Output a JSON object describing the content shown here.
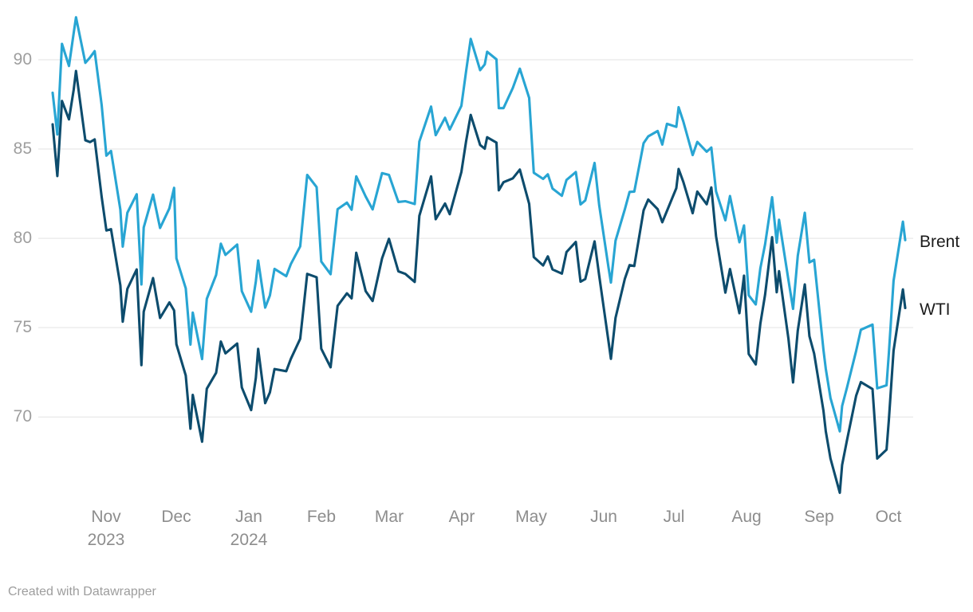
{
  "attribution": "Created with Datawrapper",
  "colors": {
    "background": "#ffffff",
    "grid": "#e3e3e3",
    "axis_text": "#9e9e9e",
    "month_text": "#8d8d8d",
    "series_label_text": "#1c1c1c",
    "brent": "#28a5d3",
    "wti": "#0d4c6d"
  },
  "chart_data": {
    "type": "line",
    "title": "",
    "xlabel": "",
    "ylabel": "",
    "grid": "horizontal",
    "legend_position": "line-end-labels-right",
    "yticks": [
      70,
      75,
      80,
      85,
      90
    ],
    "ylim": [
      65.5,
      92.9
    ],
    "x_range": [
      "2023-10-09",
      "2024-10-08"
    ],
    "month_labels": [
      {
        "text": "Nov",
        "sub": "2023",
        "date": "2023-11-01"
      },
      {
        "text": "Dec",
        "sub": "",
        "date": "2023-12-01"
      },
      {
        "text": "Jan",
        "sub": "2024",
        "date": "2024-01-01"
      },
      {
        "text": "Feb",
        "sub": "",
        "date": "2024-02-01"
      },
      {
        "text": "Mar",
        "sub": "",
        "date": "2024-03-01"
      },
      {
        "text": "Apr",
        "sub": "",
        "date": "2024-04-01"
      },
      {
        "text": "May",
        "sub": "",
        "date": "2024-05-01"
      },
      {
        "text": "Jun",
        "sub": "",
        "date": "2024-06-01"
      },
      {
        "text": "Jul",
        "sub": "",
        "date": "2024-07-01"
      },
      {
        "text": "Aug",
        "sub": "",
        "date": "2024-08-01"
      },
      {
        "text": "Sep",
        "sub": "",
        "date": "2024-09-01"
      },
      {
        "text": "Oct",
        "sub": "",
        "date": "2024-10-01"
      }
    ],
    "x": [
      "2023-10-09",
      "2023-10-11",
      "2023-10-13",
      "2023-10-16",
      "2023-10-18",
      "2023-10-19",
      "2023-10-23",
      "2023-10-25",
      "2023-10-27",
      "2023-10-30",
      "2023-11-01",
      "2023-11-03",
      "2023-11-07",
      "2023-11-08",
      "2023-11-10",
      "2023-11-14",
      "2023-11-16",
      "2023-11-17",
      "2023-11-21",
      "2023-11-24",
      "2023-11-28",
      "2023-11-30",
      "2023-12-01",
      "2023-12-05",
      "2023-12-07",
      "2023-12-08",
      "2023-12-12",
      "2023-12-14",
      "2023-12-18",
      "2023-12-20",
      "2023-12-22",
      "2023-12-27",
      "2023-12-29",
      "2024-01-02",
      "2024-01-04",
      "2024-01-05",
      "2024-01-08",
      "2024-01-10",
      "2024-01-12",
      "2024-01-17",
      "2024-01-19",
      "2024-01-23",
      "2024-01-26",
      "2024-01-30",
      "2024-02-01",
      "2024-02-05",
      "2024-02-08",
      "2024-02-12",
      "2024-02-14",
      "2024-02-16",
      "2024-02-20",
      "2024-02-23",
      "2024-02-27",
      "2024-03-01",
      "2024-03-05",
      "2024-03-08",
      "2024-03-12",
      "2024-03-14",
      "2024-03-19",
      "2024-03-21",
      "2024-03-25",
      "2024-03-27",
      "2024-04-01",
      "2024-04-03",
      "2024-04-05",
      "2024-04-09",
      "2024-04-11",
      "2024-04-12",
      "2024-04-16",
      "2024-04-17",
      "2024-04-19",
      "2024-04-23",
      "2024-04-26",
      "2024-04-30",
      "2024-05-02",
      "2024-05-06",
      "2024-05-08",
      "2024-05-10",
      "2024-05-14",
      "2024-05-16",
      "2024-05-20",
      "2024-05-22",
      "2024-05-24",
      "2024-05-28",
      "2024-05-30",
      "2024-06-03",
      "2024-06-04",
      "2024-06-06",
      "2024-06-10",
      "2024-06-12",
      "2024-06-14",
      "2024-06-18",
      "2024-06-20",
      "2024-06-24",
      "2024-06-26",
      "2024-06-28",
      "2024-07-02",
      "2024-07-03",
      "2024-07-05",
      "2024-07-09",
      "2024-07-11",
      "2024-07-15",
      "2024-07-17",
      "2024-07-19",
      "2024-07-23",
      "2024-07-25",
      "2024-07-29",
      "2024-07-31",
      "2024-08-02",
      "2024-08-05",
      "2024-08-07",
      "2024-08-09",
      "2024-08-12",
      "2024-08-14",
      "2024-08-15",
      "2024-08-19",
      "2024-08-21",
      "2024-08-23",
      "2024-08-26",
      "2024-08-28",
      "2024-08-30",
      "2024-09-03",
      "2024-09-04",
      "2024-09-06",
      "2024-09-10",
      "2024-09-11",
      "2024-09-13",
      "2024-09-17",
      "2024-09-19",
      "2024-09-24",
      "2024-09-25",
      "2024-09-26",
      "2024-09-30",
      "2024-10-01",
      "2024-10-03",
      "2024-10-07",
      "2024-10-08"
    ],
    "series": [
      {
        "name": "Brent",
        "color_key": "brent",
        "values": [
          88.15,
          85.82,
          90.89,
          89.65,
          91.5,
          92.38,
          89.83,
          90.13,
          90.48,
          87.45,
          84.63,
          84.89,
          81.61,
          79.54,
          81.43,
          82.47,
          77.42,
          80.61,
          82.45,
          80.58,
          81.68,
          82.83,
          78.88,
          77.2,
          74.05,
          75.84,
          73.24,
          76.61,
          77.95,
          79.7,
          79.07,
          79.65,
          77.04,
          75.89,
          77.59,
          78.76,
          76.12,
          76.8,
          78.29,
          77.88,
          78.56,
          79.55,
          83.55,
          82.87,
          78.7,
          77.99,
          81.63,
          82.0,
          81.6,
          83.47,
          82.34,
          81.62,
          83.65,
          83.55,
          82.04,
          82.08,
          81.92,
          85.42,
          87.38,
          85.78,
          86.75,
          86.09,
          87.42,
          89.35,
          91.17,
          89.42,
          89.74,
          90.45,
          90.02,
          87.29,
          87.29,
          88.42,
          89.5,
          87.86,
          83.67,
          83.33,
          83.58,
          82.79,
          82.38,
          83.27,
          83.71,
          81.9,
          82.12,
          84.22,
          81.86,
          78.36,
          77.52,
          79.87,
          81.63,
          82.6,
          82.62,
          85.33,
          85.71,
          86.01,
          85.25,
          86.41,
          86.24,
          87.34,
          86.54,
          84.66,
          85.4,
          84.85,
          85.08,
          82.63,
          81.01,
          82.37,
          79.78,
          80.72,
          76.81,
          76.3,
          78.33,
          79.66,
          82.3,
          79.76,
          81.04,
          77.66,
          76.05,
          79.02,
          81.43,
          78.65,
          78.8,
          73.75,
          72.7,
          71.06,
          69.19,
          70.61,
          71.61,
          73.7,
          74.88,
          75.17,
          73.46,
          71.6,
          71.77,
          73.56,
          77.62,
          80.93,
          79.9
        ]
      },
      {
        "name": "WTI",
        "color_key": "wti",
        "values": [
          86.38,
          83.49,
          87.69,
          86.66,
          88.32,
          89.37,
          85.49,
          85.39,
          85.54,
          82.31,
          80.44,
          80.51,
          77.37,
          75.33,
          77.17,
          78.26,
          72.9,
          75.89,
          77.77,
          75.54,
          76.41,
          75.96,
          74.07,
          72.32,
          69.34,
          71.23,
          68.61,
          71.58,
          72.47,
          74.22,
          73.56,
          74.11,
          71.65,
          70.38,
          72.19,
          73.81,
          70.77,
          71.37,
          72.68,
          72.56,
          73.25,
          74.37,
          78.01,
          77.82,
          73.82,
          72.78,
          76.22,
          76.92,
          76.64,
          79.19,
          77.04,
          76.49,
          78.87,
          79.97,
          78.15,
          78.01,
          77.56,
          81.26,
          83.47,
          81.07,
          81.95,
          81.35,
          83.71,
          85.43,
          86.91,
          85.23,
          85.02,
          85.66,
          85.36,
          82.69,
          83.14,
          83.36,
          83.85,
          81.93,
          78.95,
          78.48,
          78.99,
          78.26,
          78.02,
          79.23,
          79.8,
          77.57,
          77.72,
          79.83,
          77.91,
          74.22,
          73.25,
          75.55,
          77.74,
          78.5,
          78.45,
          81.57,
          82.17,
          81.63,
          80.9,
          81.54,
          82.81,
          83.88,
          83.16,
          81.41,
          82.62,
          81.91,
          82.85,
          80.13,
          76.96,
          78.28,
          75.81,
          77.91,
          73.52,
          72.94,
          75.23,
          76.84,
          80.06,
          76.98,
          78.16,
          74.37,
          71.93,
          74.83,
          77.42,
          74.52,
          73.55,
          70.34,
          69.2,
          67.67,
          65.75,
          67.31,
          68.65,
          71.19,
          71.95,
          71.56,
          69.69,
          67.67,
          68.17,
          69.83,
          73.71,
          77.14,
          76.1
        ]
      }
    ]
  }
}
